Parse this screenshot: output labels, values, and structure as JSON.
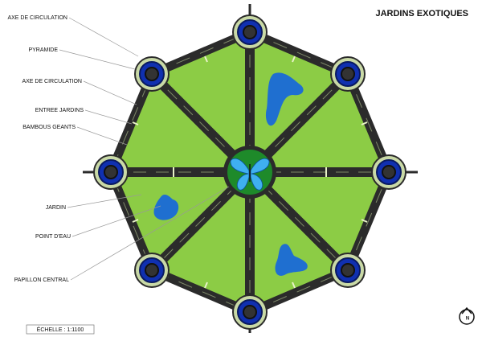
{
  "title": "JARDINS EXOTIQUES",
  "labels": [
    "AXE DE CIRCULATION",
    "PYRAMIDE",
    "AXE DE CIRCULATION",
    "ENTREE JARDINS",
    "BAMBOUS GEANTS",
    "JARDIN",
    "POINT D'EAU",
    "PAPILLON CENTRAL"
  ],
  "scale": "ÉCHELLE :  1:1100",
  "north": "N"
}
